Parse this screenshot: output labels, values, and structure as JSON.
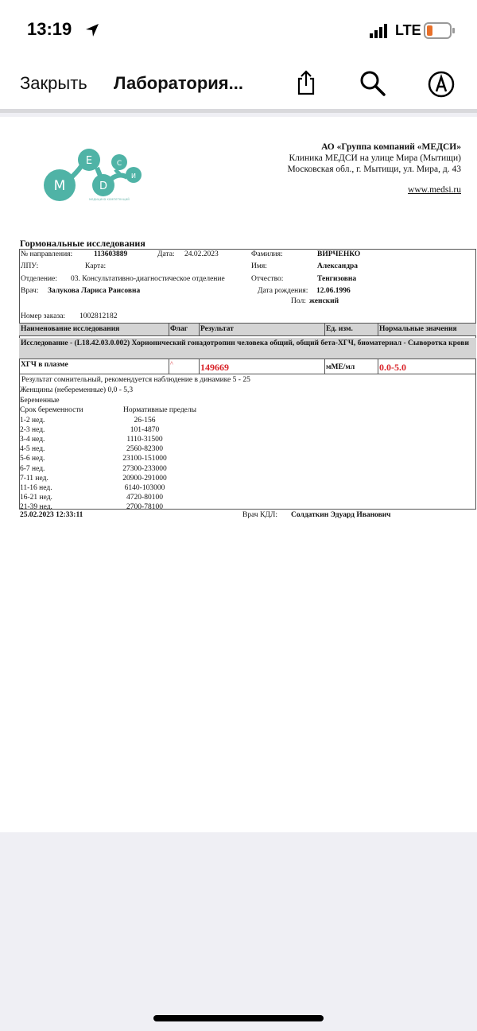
{
  "status_bar": {
    "time": "13:19",
    "network": "LTE",
    "icons": [
      "location-arrow-icon",
      "signal-icon",
      "battery-icon"
    ]
  },
  "nav": {
    "close": "Закрыть",
    "title": "Лаборатория...",
    "icons": [
      "share-icon",
      "search-icon",
      "markup-icon"
    ]
  },
  "header": {
    "logo_letters": [
      "М",
      "Е",
      "D",
      "С",
      "И"
    ],
    "logo_tagline": "медицина компетенций",
    "company": "АО «Группа компаний «МЕДСИ»",
    "clinic": "Клиника МЕДСИ на улице Мира (Мытищи)",
    "address": "Московская обл., г. Мытищи, ул. Мира, д. 43",
    "website": "www.medsi.ru",
    "brand_color": "#4fb3a6"
  },
  "report": {
    "title": "Гормональные исследования",
    "referral_label": "№ направления:",
    "referral": "113603889",
    "date_label": "Дата:",
    "date": "24.02.2023",
    "surname_label": "Фамилия:",
    "surname": "ВИРЧЕНКО",
    "lpu_label": "ЛПУ:",
    "card_label": "Карта:",
    "name_label": "Имя:",
    "name": "Александра",
    "dept_label": "Отделение:",
    "dept": "03. Консультативно-диагностическое отделение",
    "patronymic_label": "Отчество:",
    "patronymic": "Тенгизовна",
    "doctor_label": "Врач:",
    "doctor": "Залукова Лариса Раисовна",
    "dob_label": "Дата рождения:",
    "dob": "12.06.1996",
    "sex_label": "Пол:",
    "sex": "женский",
    "order_label": "Номер заказа:",
    "order": "1002812182",
    "columns": [
      "Наименование исследования",
      "Флаг",
      "Результат",
      "Ед. изм.",
      "Нормальные значения"
    ],
    "study": "Исследование - (L18.42.03.0.002) Хорионический гонадотропин человека общий, общий бета-ХГЧ, биоматериал - Сыворотка крови",
    "result": {
      "name": "ХГЧ в плазме",
      "flag": "^",
      "value": "149669",
      "unit": "мМЕ/мл",
      "normal": "0.0-5.0"
    },
    "notes": [
      "Результат сомнительный, рекомендуется наблюдение в динамике  5 - 25",
      "Женщины (небеременные) 0,0 - 5,3",
      "Беременные"
    ],
    "ranges_header": [
      "Срок беременности",
      "Нормативные пределы"
    ],
    "ranges": [
      [
        "1-2 нед.",
        "26-156"
      ],
      [
        "2-3 нед.",
        "101-4870"
      ],
      [
        "3-4 нед.",
        "1110-31500"
      ],
      [
        "4-5 нед.",
        "2560-82300"
      ],
      [
        "5-6 нед.",
        "23100-151000"
      ],
      [
        "6-7 нед.",
        "27300-233000"
      ],
      [
        "7-11 нед.",
        "20900-291000"
      ],
      [
        "11-16 нед.",
        "6140-103000"
      ],
      [
        "16-21 нед.",
        "4720-80100"
      ],
      [
        "21-39 нед.",
        "2700-78100"
      ]
    ],
    "footer_datetime": "25.02.2023   12:33:11",
    "kdl_label": "Врач КДЛ:",
    "kdl_doctor": "Солдаткин Эдуард Иванович"
  }
}
